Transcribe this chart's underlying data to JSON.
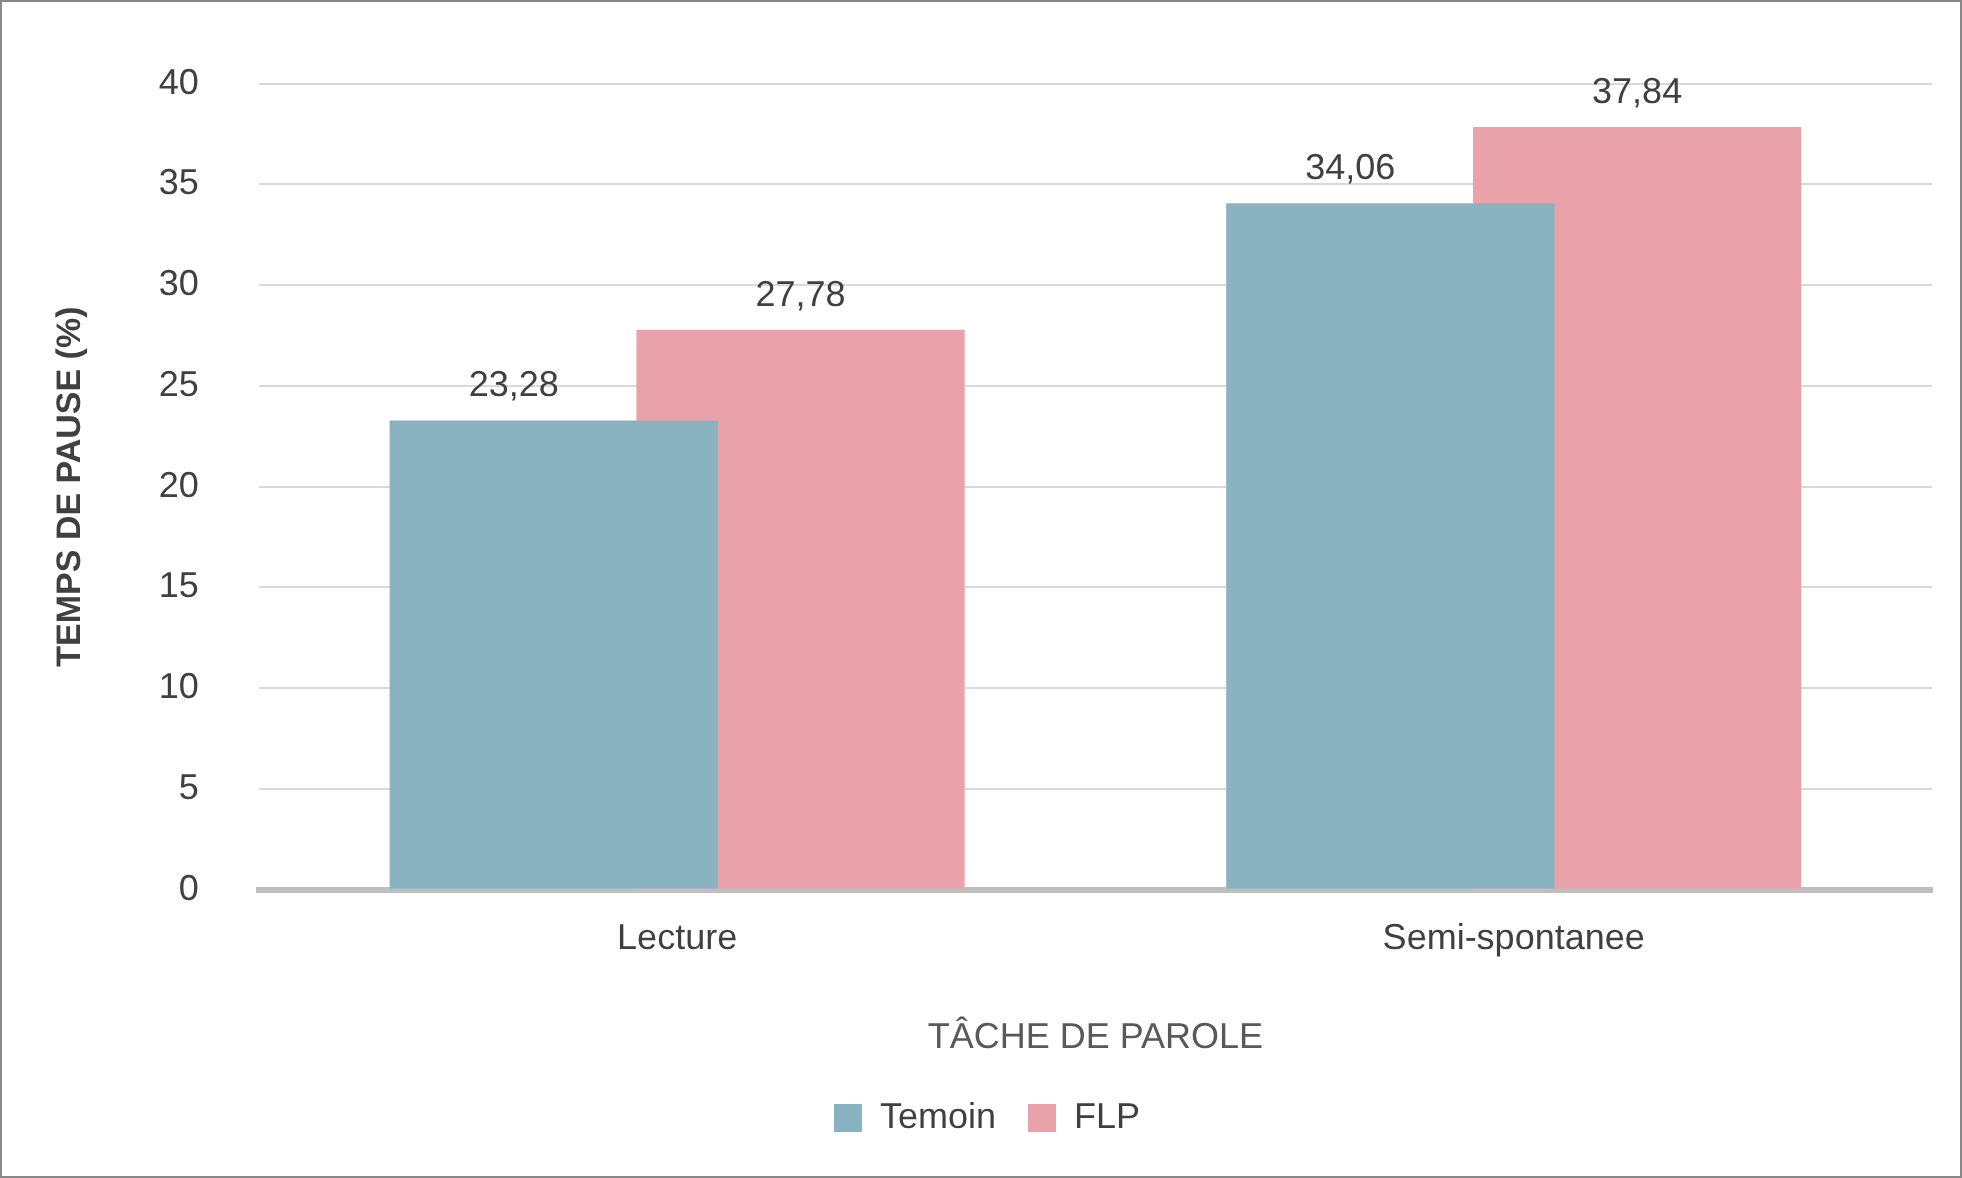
{
  "chart_data": {
    "type": "bar",
    "xlabel": "TÂCHE DE PAROLE",
    "ylabel": "TEMPS DE PAUSE (%)",
    "categories": [
      "Lecture",
      "Semi-spontanee"
    ],
    "series": [
      {
        "name": "Temoin",
        "color": "#8ab3c2",
        "values": [
          23.28,
          34.06
        ],
        "value_labels": [
          "23,28",
          "34,06"
        ]
      },
      {
        "name": "FLP",
        "color": "#e9a2a9",
        "values": [
          27.78,
          37.84
        ],
        "value_labels": [
          "27,78",
          "37,84"
        ]
      }
    ],
    "ylim": [
      0,
      40
    ],
    "yticks": [
      0,
      5,
      10,
      15,
      20,
      25,
      30,
      35,
      40
    ],
    "grid": "y",
    "legend": "bottom"
  }
}
